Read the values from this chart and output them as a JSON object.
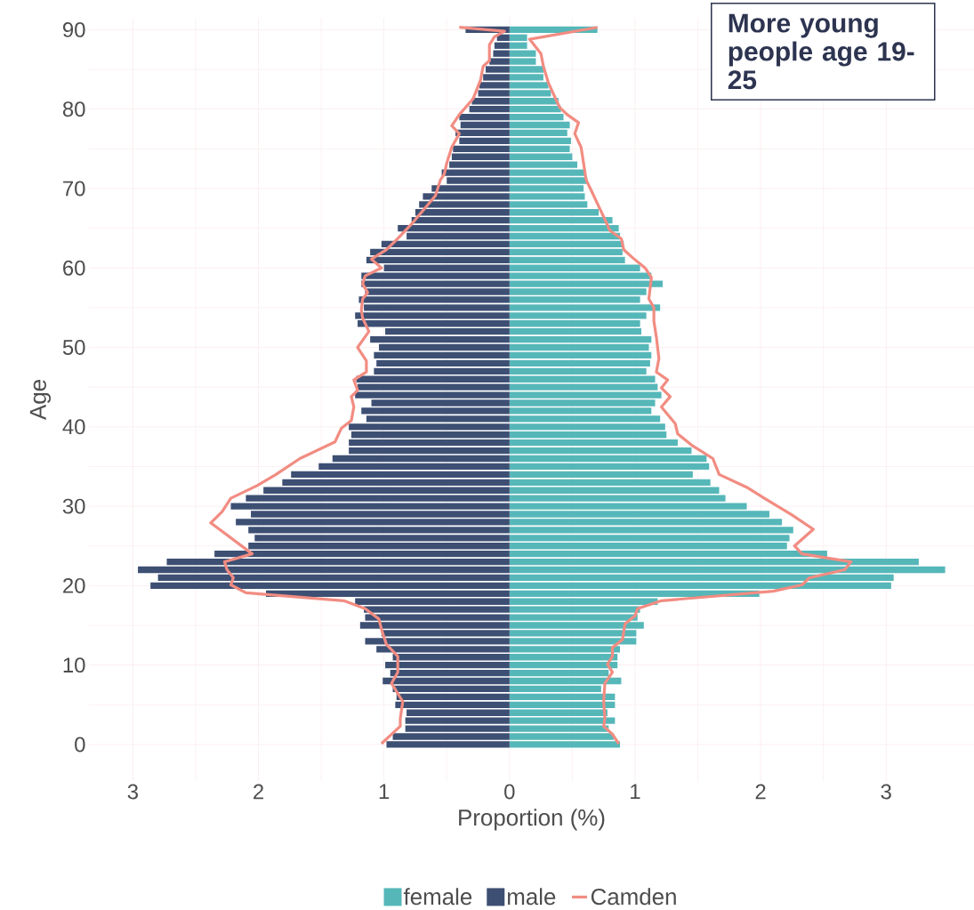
{
  "chart_data": {
    "type": "bar",
    "orientation": "horizontal",
    "xlabel": "Proportion (%)",
    "ylabel": "Age",
    "annotations": [
      "More young people age 19-25"
    ],
    "x": [
      0,
      1,
      2,
      3,
      4,
      5,
      6,
      7,
      8,
      9,
      10,
      11,
      12,
      13,
      14,
      15,
      16,
      17,
      18,
      19,
      20,
      21,
      22,
      23,
      24,
      25,
      26,
      27,
      28,
      29,
      30,
      31,
      32,
      33,
      34,
      35,
      36,
      37,
      38,
      39,
      40,
      41,
      42,
      43,
      44,
      45,
      46,
      47,
      48,
      49,
      50,
      51,
      52,
      53,
      54,
      55,
      56,
      57,
      58,
      59,
      60,
      61,
      62,
      63,
      64,
      65,
      66,
      67,
      68,
      69,
      70,
      71,
      72,
      73,
      74,
      75,
      76,
      77,
      78,
      79,
      80,
      81,
      82,
      83,
      84,
      85,
      86,
      87,
      88,
      89,
      90
    ],
    "series": [
      {
        "name": "female",
        "color": "#56b7b9",
        "values": [
          0.88,
          0.83,
          0.79,
          0.84,
          0.78,
          0.84,
          0.84,
          0.73,
          0.89,
          0.79,
          0.86,
          0.86,
          0.88,
          1.01,
          1.01,
          1.07,
          1.02,
          1.04,
          1.18,
          1.99,
          3.04,
          3.06,
          3.47,
          3.26,
          2.53,
          2.21,
          2.23,
          2.26,
          2.17,
          2.07,
          1.89,
          1.72,
          1.67,
          1.6,
          1.46,
          1.59,
          1.57,
          1.45,
          1.34,
          1.25,
          1.24,
          1.2,
          1.13,
          1.16,
          1.21,
          1.18,
          1.16,
          1.09,
          1.12,
          1.13,
          1.11,
          1.13,
          1.05,
          1.04,
          1.09,
          1.2,
          1.04,
          1.09,
          1.22,
          1.13,
          1.04,
          0.92,
          0.9,
          0.91,
          0.88,
          0.87,
          0.82,
          0.71,
          0.62,
          0.6,
          0.59,
          0.62,
          0.61,
          0.54,
          0.5,
          0.48,
          0.49,
          0.46,
          0.48,
          0.43,
          0.41,
          0.39,
          0.33,
          0.31,
          0.27,
          0.27,
          0.21,
          0.21,
          0.14,
          0.14,
          0.7
        ]
      },
      {
        "name": "male",
        "color": "#3d4f73",
        "values": [
          -0.98,
          -0.93,
          -0.83,
          -0.83,
          -0.82,
          -0.91,
          -0.9,
          -0.93,
          -1.01,
          -0.95,
          -0.99,
          -0.93,
          -1.06,
          -1.15,
          -1.02,
          -1.19,
          -1.15,
          -1.16,
          -1.23,
          -1.94,
          -2.86,
          -2.8,
          -2.96,
          -2.73,
          -2.35,
          -2.08,
          -2.03,
          -2.08,
          -2.18,
          -2.06,
          -2.22,
          -2.1,
          -1.96,
          -1.81,
          -1.74,
          -1.52,
          -1.41,
          -1.28,
          -1.28,
          -1.26,
          -1.28,
          -1.14,
          -1.18,
          -1.1,
          -1.23,
          -1.21,
          -1.22,
          -1.08,
          -1.06,
          -1.08,
          -1.04,
          -1.11,
          -0.99,
          -1.21,
          -1.23,
          -1.16,
          -1.2,
          -1.15,
          -1.18,
          -1.18,
          -1.0,
          -1.14,
          -1.11,
          -1.02,
          -0.82,
          -0.89,
          -0.78,
          -0.75,
          -0.72,
          -0.69,
          -0.62,
          -0.5,
          -0.54,
          -0.48,
          -0.46,
          -0.45,
          -0.4,
          -0.43,
          -0.39,
          -0.4,
          -0.32,
          -0.3,
          -0.25,
          -0.24,
          -0.21,
          -0.19,
          -0.16,
          -0.13,
          -0.12,
          -0.1,
          -0.35
        ]
      },
      {
        "name": "Camden",
        "type": "line",
        "color": "#f28c82",
        "x": [
          0.1,
          2.3,
          3.3,
          5.4,
          7.7,
          9.1,
          11.1,
          12.6,
          14.5,
          15.8,
          17.1,
          18.1,
          19.1,
          20.1,
          21.0,
          22.0,
          23.0,
          24.0,
          27.9,
          29.3,
          31.0,
          32.6,
          34.0,
          36.0,
          38.1,
          39.8,
          40.8,
          42.5,
          43.8,
          44.6,
          45.9,
          46.9,
          48.3,
          50.0,
          52.0,
          53.7,
          54.7,
          56.1,
          56.9,
          58.0,
          59.0,
          60.0,
          61.1,
          62.3,
          63.7,
          65.7,
          69.1,
          71.1,
          71.8,
          73.2,
          75.2,
          76.9,
          77.9,
          79.3,
          81.3,
          83.7,
          85.4,
          86.1,
          88.1,
          89.1,
          89.8,
          90.3
        ],
        "values": [
          -1.02,
          -0.87,
          -0.87,
          -0.85,
          -0.94,
          -0.89,
          -0.89,
          -0.98,
          -1.02,
          -1.04,
          -1.15,
          -1.32,
          -2.1,
          -2.22,
          -2.2,
          -2.25,
          -2.27,
          -2.05,
          -2.38,
          -2.29,
          -2.22,
          -2.01,
          -1.86,
          -1.67,
          -1.39,
          -1.34,
          -1.26,
          -1.24,
          -1.26,
          -1.21,
          -1.24,
          -1.14,
          -1.14,
          -1.21,
          -1.12,
          -1.17,
          -1.18,
          -1.17,
          -1.13,
          -1.17,
          -1.15,
          -1.02,
          -1.1,
          -0.98,
          -0.89,
          -0.77,
          -0.59,
          -0.55,
          -0.52,
          -0.5,
          -0.46,
          -0.4,
          -0.46,
          -0.4,
          -0.29,
          -0.23,
          -0.21,
          -0.16,
          -0.16,
          -0.12,
          -0.04,
          -0.4
        ]
      },
      {
        "type": "line",
        "color": "#f28c82",
        "x": [
          0.1,
          1.3,
          2.3,
          3.3,
          5.4,
          7.7,
          9.1,
          10.1,
          11.1,
          12.2,
          13.2,
          15.2,
          16.2,
          17.1,
          18.1,
          19.3,
          20.1,
          21.0,
          22.0,
          23.0,
          24.0,
          25.0,
          27.1,
          28.9,
          31.0,
          32.3,
          34.0,
          36.0,
          37.7,
          39.1,
          40.4,
          42.5,
          43.8,
          44.9,
          45.9,
          46.9,
          48.6,
          51.3,
          53.3,
          55.0,
          56.1,
          58.8,
          60.0,
          61.3,
          62.3,
          63.7,
          64.7,
          66.1,
          68.1,
          69.8,
          71.1,
          73.2,
          75.2,
          76.9,
          78.3,
          79.3,
          80.2,
          81.9,
          83.3,
          85.4,
          87.0,
          88.8,
          90.3
        ],
        "values": [
          0.87,
          0.82,
          0.75,
          0.76,
          0.75,
          0.76,
          0.82,
          0.78,
          0.82,
          0.82,
          0.9,
          0.92,
          1.0,
          1.02,
          1.21,
          2.1,
          2.33,
          2.39,
          2.67,
          2.72,
          2.33,
          2.27,
          2.42,
          2.25,
          2.03,
          1.9,
          1.67,
          1.62,
          1.45,
          1.34,
          1.32,
          1.21,
          1.28,
          1.21,
          1.26,
          1.17,
          1.19,
          1.17,
          1.15,
          1.15,
          1.11,
          1.13,
          1.08,
          0.98,
          0.91,
          0.89,
          0.8,
          0.76,
          0.7,
          0.65,
          0.61,
          0.59,
          0.57,
          0.52,
          0.55,
          0.46,
          0.4,
          0.35,
          0.31,
          0.27,
          0.25,
          0.16,
          0.7
        ]
      }
    ],
    "xlim": [
      -3.35,
      3.7
    ],
    "xticks": [
      {
        "value": -3,
        "label": "3"
      },
      {
        "value": -2,
        "label": "2"
      },
      {
        "value": -1,
        "label": "1"
      },
      0,
      1,
      2,
      3
    ],
    "ylim": [
      -4.6,
      91.5
    ],
    "yticks": [
      0,
      10,
      20,
      30,
      40,
      50,
      60,
      70,
      80,
      90
    ],
    "grid": true,
    "legend": "bottom",
    "stacked": true
  }
}
